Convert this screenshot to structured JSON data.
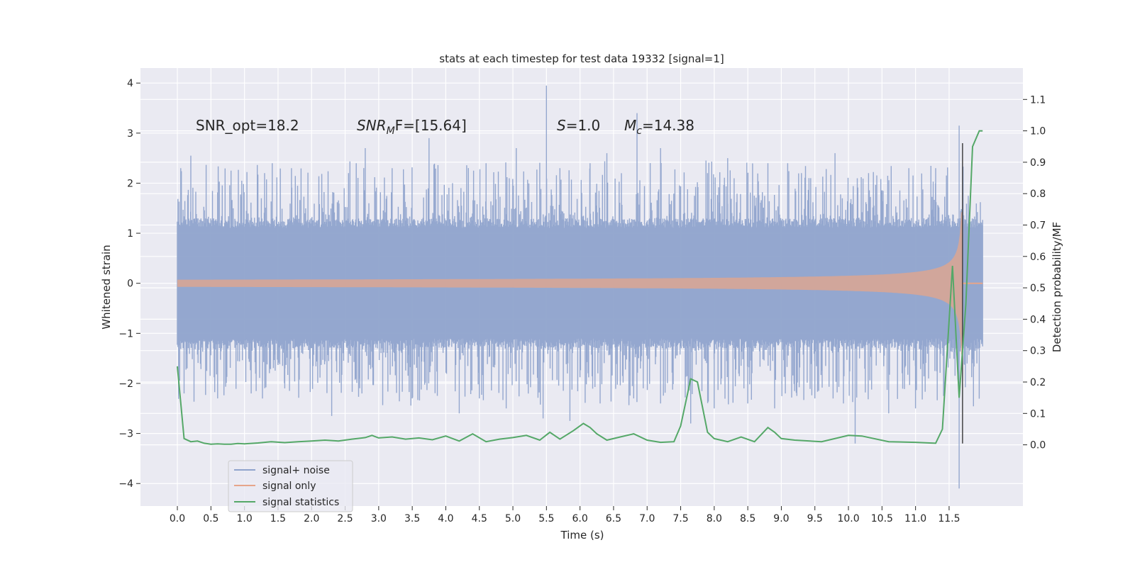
{
  "chart_data": {
    "type": "line",
    "title": "stats at each timestep for test data 19332 [signal=1]",
    "xlabel": "Time (s)",
    "ylabel_left": "Whitened strain",
    "ylabel_right": "Detection probability/MF",
    "xlim": [
      -0.55,
      12.6
    ],
    "ylim_left": [
      -4.45,
      4.3
    ],
    "ylim_right": [
      -0.195,
      1.2
    ],
    "xticks": [
      "0.0",
      "0.5",
      "1.0",
      "1.5",
      "2.0",
      "2.5",
      "3.0",
      "3.5",
      "4.0",
      "4.5",
      "5.0",
      "5.5",
      "6.0",
      "6.5",
      "7.0",
      "7.5",
      "8.0",
      "8.5",
      "9.0",
      "9.5",
      "10.0",
      "10.5",
      "11.0",
      "11.5"
    ],
    "yticks_left": [
      "4",
      "3",
      "2",
      "1",
      "0",
      "−1",
      "−2",
      "−3",
      "−4"
    ],
    "yticks_right": [
      "1.1",
      "1.0",
      "0.9",
      "0.8",
      "0.7",
      "0.6",
      "0.5",
      "0.4",
      "0.3",
      "0.2",
      "0.1",
      "0.0"
    ],
    "grid": true,
    "legend_position": "lower-left",
    "annotations": {
      "snr_opt": "SNR_opt=18.2",
      "snr_mf_main": "SNR",
      "snr_mf_sub": "M",
      "snr_mf_tail": "F=[15.64]",
      "s_main": "S",
      "s_tail": "=1.0",
      "mc_main": "M",
      "mc_sub": "c",
      "mc_tail": "=14.38"
    },
    "series": [
      {
        "name": "signal+ noise",
        "color": "#8fa3cc",
        "axis": "left",
        "t_range": [
          0.0,
          12.0
        ],
        "envelope_upper": 1.3,
        "envelope_lower": -1.3,
        "spike_peaks_upper": [
          [
            0.05,
            2.3
          ],
          [
            0.2,
            2.55
          ],
          [
            0.8,
            2.25
          ],
          [
            1.3,
            2.2
          ],
          [
            1.7,
            2.3
          ],
          [
            2.55,
            2.2
          ],
          [
            2.8,
            2.7
          ],
          [
            3.2,
            2.3
          ],
          [
            3.75,
            2.9
          ],
          [
            4.1,
            2.0
          ],
          [
            4.6,
            2.4
          ],
          [
            5.05,
            2.7
          ],
          [
            5.5,
            3.95
          ],
          [
            5.7,
            2.3
          ],
          [
            6.15,
            2.4
          ],
          [
            6.4,
            2.6
          ],
          [
            6.85,
            3.4
          ],
          [
            7.2,
            2.7
          ],
          [
            7.9,
            2.2
          ],
          [
            8.2,
            2.5
          ],
          [
            8.8,
            2.4
          ],
          [
            9.3,
            2.2
          ],
          [
            9.8,
            2.6
          ],
          [
            10.3,
            2.2
          ],
          [
            10.9,
            2.3
          ],
          [
            11.3,
            2.3
          ],
          [
            11.65,
            3.15
          ]
        ],
        "spike_peaks_lower": [
          [
            0.1,
            -2.2
          ],
          [
            0.6,
            -2.3
          ],
          [
            1.1,
            -2.2
          ],
          [
            1.6,
            -2.1
          ],
          [
            2.3,
            -2.65
          ],
          [
            2.75,
            -2.2
          ],
          [
            3.5,
            -2.3
          ],
          [
            4.2,
            -2.6
          ],
          [
            4.5,
            -2.3
          ],
          [
            4.9,
            -2.5
          ],
          [
            5.45,
            -2.7
          ],
          [
            5.85,
            -2.75
          ],
          [
            6.3,
            -2.4
          ],
          [
            6.8,
            -2.3
          ],
          [
            7.2,
            -2.4
          ],
          [
            7.65,
            -2.8
          ],
          [
            8.0,
            -2.5
          ],
          [
            8.5,
            -2.4
          ],
          [
            8.9,
            -2.5
          ],
          [
            9.5,
            -2.3
          ],
          [
            10.1,
            -3.2
          ],
          [
            10.6,
            -2.6
          ],
          [
            11.0,
            -2.5
          ],
          [
            11.65,
            -4.1
          ]
        ]
      },
      {
        "name": "signal only",
        "color": "#e6a58a",
        "axis": "left",
        "description": "chirp",
        "t_range": [
          0.0,
          12.0
        ],
        "merger_time": 11.7,
        "peak_amplitude": 2.8
      },
      {
        "name": "signal statistics",
        "color": "#55a868",
        "axis": "right",
        "x": [
          0.0,
          0.1,
          0.2,
          0.3,
          0.4,
          0.5,
          0.6,
          0.7,
          0.8,
          0.9,
          1.0,
          1.2,
          1.4,
          1.6,
          1.8,
          2.0,
          2.2,
          2.4,
          2.6,
          2.8,
          2.9,
          3.0,
          3.2,
          3.4,
          3.6,
          3.8,
          4.0,
          4.2,
          4.4,
          4.6,
          4.8,
          5.0,
          5.2,
          5.4,
          5.55,
          5.7,
          5.9,
          6.05,
          6.15,
          6.25,
          6.4,
          6.6,
          6.8,
          7.0,
          7.2,
          7.4,
          7.5,
          7.65,
          7.75,
          7.9,
          8.0,
          8.2,
          8.4,
          8.6,
          8.8,
          8.9,
          9.0,
          9.2,
          9.6,
          10.0,
          10.2,
          10.6,
          11.0,
          11.3,
          11.4,
          11.55,
          11.65,
          11.75,
          11.85,
          11.95,
          12.0
        ],
        "y": [
          0.25,
          0.02,
          0.01,
          0.012,
          0.005,
          0.002,
          0.003,
          0.002,
          0.002,
          0.004,
          0.003,
          0.006,
          0.01,
          0.007,
          0.01,
          0.012,
          0.015,
          0.012,
          0.018,
          0.023,
          0.03,
          0.022,
          0.025,
          0.018,
          0.022,
          0.016,
          0.028,
          0.012,
          0.035,
          0.01,
          0.018,
          0.023,
          0.03,
          0.015,
          0.04,
          0.018,
          0.045,
          0.068,
          0.055,
          0.035,
          0.015,
          0.025,
          0.035,
          0.015,
          0.008,
          0.01,
          0.06,
          0.21,
          0.2,
          0.04,
          0.02,
          0.01,
          0.025,
          0.01,
          0.055,
          0.04,
          0.02,
          0.015,
          0.01,
          0.03,
          0.028,
          0.01,
          0.008,
          0.005,
          0.05,
          0.57,
          0.15,
          0.45,
          0.95,
          1.0,
          1.0
        ]
      }
    ]
  }
}
